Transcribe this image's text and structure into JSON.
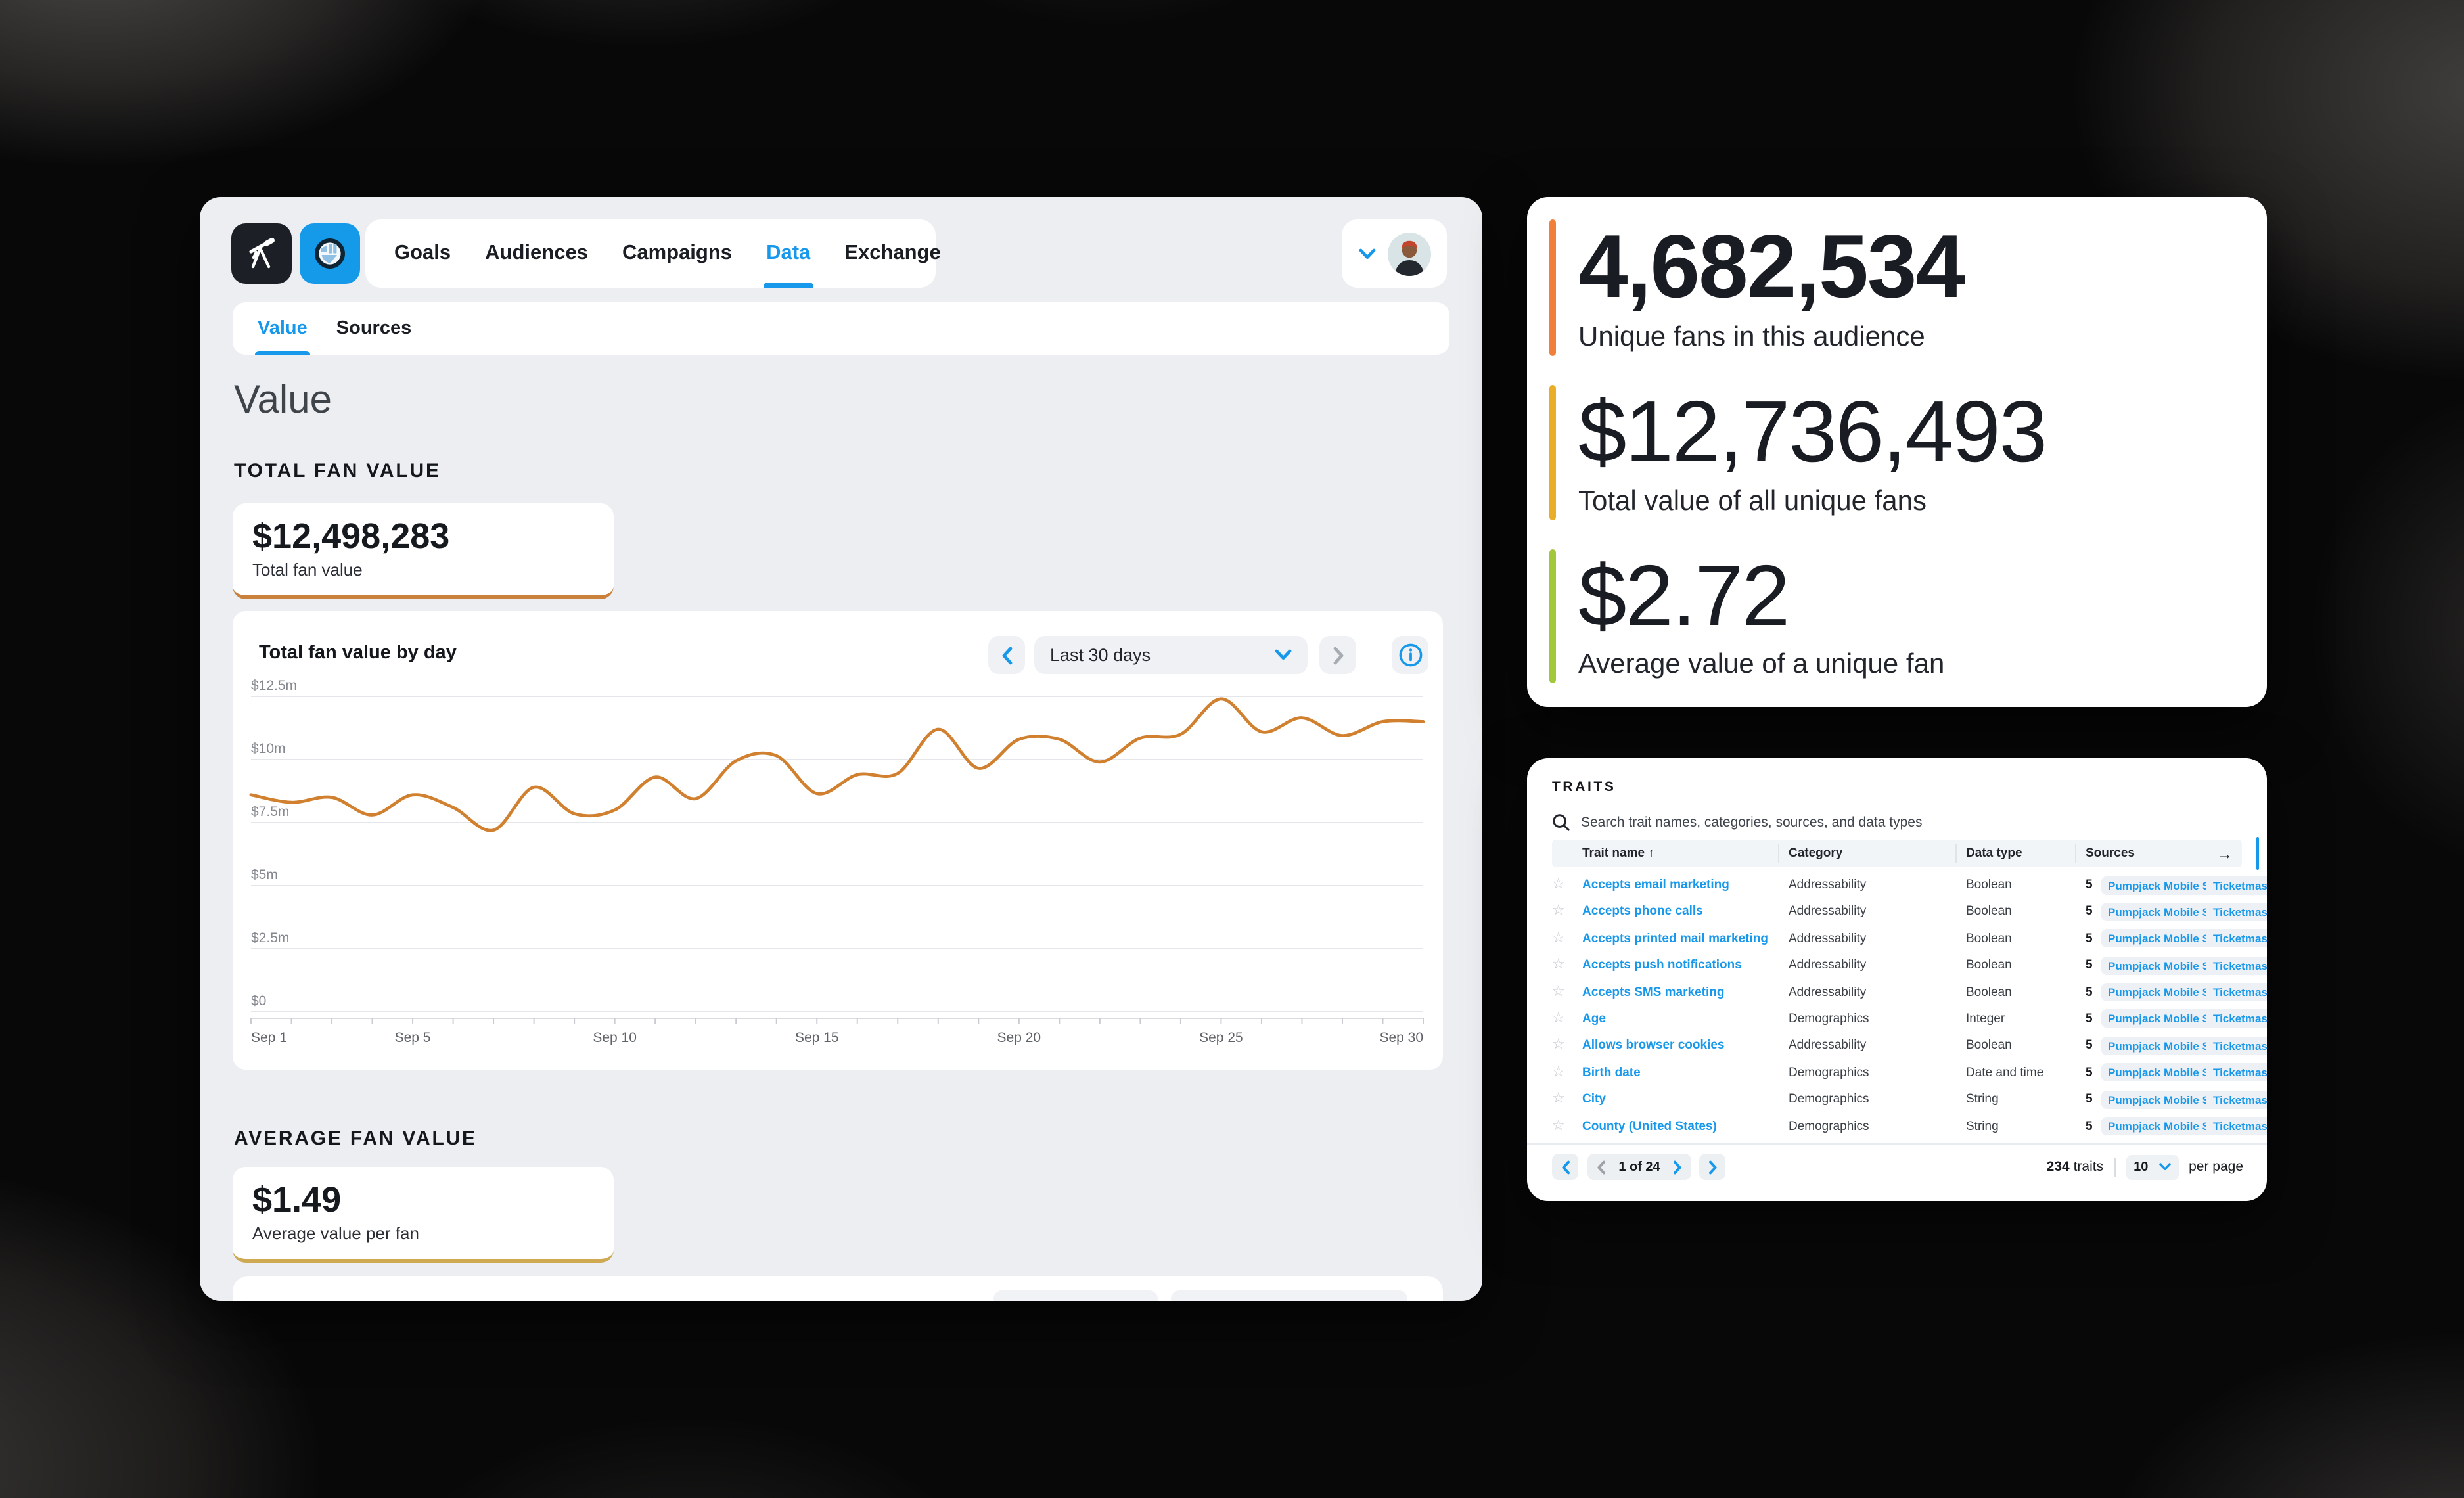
{
  "nav": {
    "tabs": [
      {
        "label": "Goals"
      },
      {
        "label": "Audiences"
      },
      {
        "label": "Campaigns"
      },
      {
        "label": "Data"
      },
      {
        "label": "Exchange"
      }
    ],
    "active_tab": "Data",
    "subtabs": [
      {
        "label": "Value"
      },
      {
        "label": "Sources"
      }
    ],
    "active_subtab": "Value"
  },
  "page": {
    "title": "Value"
  },
  "sections": {
    "total_fan_value": {
      "heading": "TOTAL FAN VALUE",
      "value": "$12,498,283",
      "label": "Total fan value",
      "accent_color": "#C9813B"
    },
    "average_fan_value": {
      "heading": "AVERAGE FAN VALUE",
      "value": "$1.49",
      "label": "Average value per fan",
      "accent_color": "#CFA852"
    }
  },
  "chart_controls": {
    "range_label": "Last 30 days"
  },
  "chart_data": {
    "type": "line",
    "title": "Total fan value by day",
    "x": [
      "Sep 1",
      "Sep 2",
      "Sep 3",
      "Sep 4",
      "Sep 5",
      "Sep 6",
      "Sep 7",
      "Sep 8",
      "Sep 9",
      "Sep 10",
      "Sep 11",
      "Sep 12",
      "Sep 13",
      "Sep 14",
      "Sep 15",
      "Sep 16",
      "Sep 17",
      "Sep 18",
      "Sep 19",
      "Sep 20",
      "Sep 21",
      "Sep 22",
      "Sep 23",
      "Sep 24",
      "Sep 25",
      "Sep 26",
      "Sep 27",
      "Sep 28",
      "Sep 29",
      "Sep 30"
    ],
    "values": [
      8.6,
      8.3,
      8.5,
      7.8,
      8.6,
      8.1,
      7.2,
      8.9,
      7.85,
      8.0,
      9.3,
      8.45,
      9.95,
      10.15,
      8.65,
      9.4,
      9.45,
      11.2,
      9.65,
      10.8,
      10.8,
      9.9,
      10.85,
      11.0,
      12.4,
      11.1,
      11.65,
      10.95,
      11.5,
      11.5
    ],
    "unit": "million USD",
    "ylim": [
      0,
      12.5
    ],
    "y_ticks": [
      {
        "v": 0,
        "label": "$0"
      },
      {
        "v": 2.5,
        "label": "$2.5m"
      },
      {
        "v": 5,
        "label": "$5m"
      },
      {
        "v": 7.5,
        "label": "$7.5m"
      },
      {
        "v": 10,
        "label": "$10m"
      },
      {
        "v": 12.5,
        "label": "$12.5m"
      }
    ],
    "x_tick_labels": [
      "Sep 1",
      "Sep 5",
      "Sep 10",
      "Sep 15",
      "Sep 20",
      "Sep 25",
      "Sep 30"
    ],
    "x_tick_indices": [
      0,
      4,
      9,
      14,
      19,
      24,
      29
    ],
    "grid": "horizontal",
    "legend": "none",
    "line_color": "#D0802F"
  },
  "stats": {
    "items": [
      {
        "value": "4,682,534",
        "label": "Unique fans in this audience",
        "accent": "#F07F3C",
        "bold": true
      },
      {
        "value": "$12,736,493",
        "label": "Total value of all unique fans",
        "accent": "#E9AD27",
        "bold": false
      },
      {
        "value": "$2.72",
        "label": "Average value of a unique fan",
        "accent": "#A2C73B",
        "bold": false
      }
    ]
  },
  "traits": {
    "heading": "TRAITS",
    "search_placeholder": "Search trait names, categories, sources, and data types",
    "columns": [
      "Trait name",
      "Category",
      "Data type",
      "Sources"
    ],
    "sort_column": "Trait name",
    "sort_direction": "asc",
    "rows": [
      {
        "name": "Accepts email marketing",
        "category": "Addressability",
        "data_type": "Boolean",
        "source_count": "5",
        "sources": [
          "Pumpjack Mobile SDK",
          "Ticketmast"
        ]
      },
      {
        "name": "Accepts phone calls",
        "category": "Addressability",
        "data_type": "Boolean",
        "source_count": "5",
        "sources": [
          "Pumpjack Mobile SDK",
          "Ticketmast"
        ]
      },
      {
        "name": "Accepts printed mail marketing",
        "category": "Addressability",
        "data_type": "Boolean",
        "source_count": "5",
        "sources": [
          "Pumpjack Mobile SDK",
          "Ticketmast"
        ]
      },
      {
        "name": "Accepts push notifications",
        "category": "Addressability",
        "data_type": "Boolean",
        "source_count": "5",
        "sources": [
          "Pumpjack Mobile SDK",
          "Ticketmast"
        ]
      },
      {
        "name": "Accepts SMS marketing",
        "category": "Addressability",
        "data_type": "Boolean",
        "source_count": "5",
        "sources": [
          "Pumpjack Mobile SDK",
          "Ticketmast"
        ]
      },
      {
        "name": "Age",
        "category": "Demographics",
        "data_type": "Integer",
        "source_count": "5",
        "sources": [
          "Pumpjack Mobile SDK",
          "Ticketmast"
        ]
      },
      {
        "name": "Allows browser cookies",
        "category": "Addressability",
        "data_type": "Boolean",
        "source_count": "5",
        "sources": [
          "Pumpjack Mobile SDK",
          "Ticketmast"
        ]
      },
      {
        "name": "Birth date",
        "category": "Demographics",
        "data_type": "Date and time",
        "source_count": "5",
        "sources": [
          "Pumpjack Mobile SDK",
          "Ticketmast"
        ]
      },
      {
        "name": "City",
        "category": "Demographics",
        "data_type": "String",
        "source_count": "5",
        "sources": [
          "Pumpjack Mobile SDK",
          "Ticketmast"
        ]
      },
      {
        "name": "County (United States)",
        "category": "Demographics",
        "data_type": "String",
        "source_count": "5",
        "sources": [
          "Pumpjack Mobile SDK",
          "Ticketmast"
        ]
      }
    ],
    "pagination": {
      "page_label": "1 of 24",
      "total": "234",
      "total_unit": "traits",
      "per_page": "10",
      "per_page_suffix": "per page"
    }
  },
  "colors": {
    "accent_blue": "#1798EB",
    "panel_gray": "#ECEEF1",
    "line_orange": "#D0802F"
  }
}
